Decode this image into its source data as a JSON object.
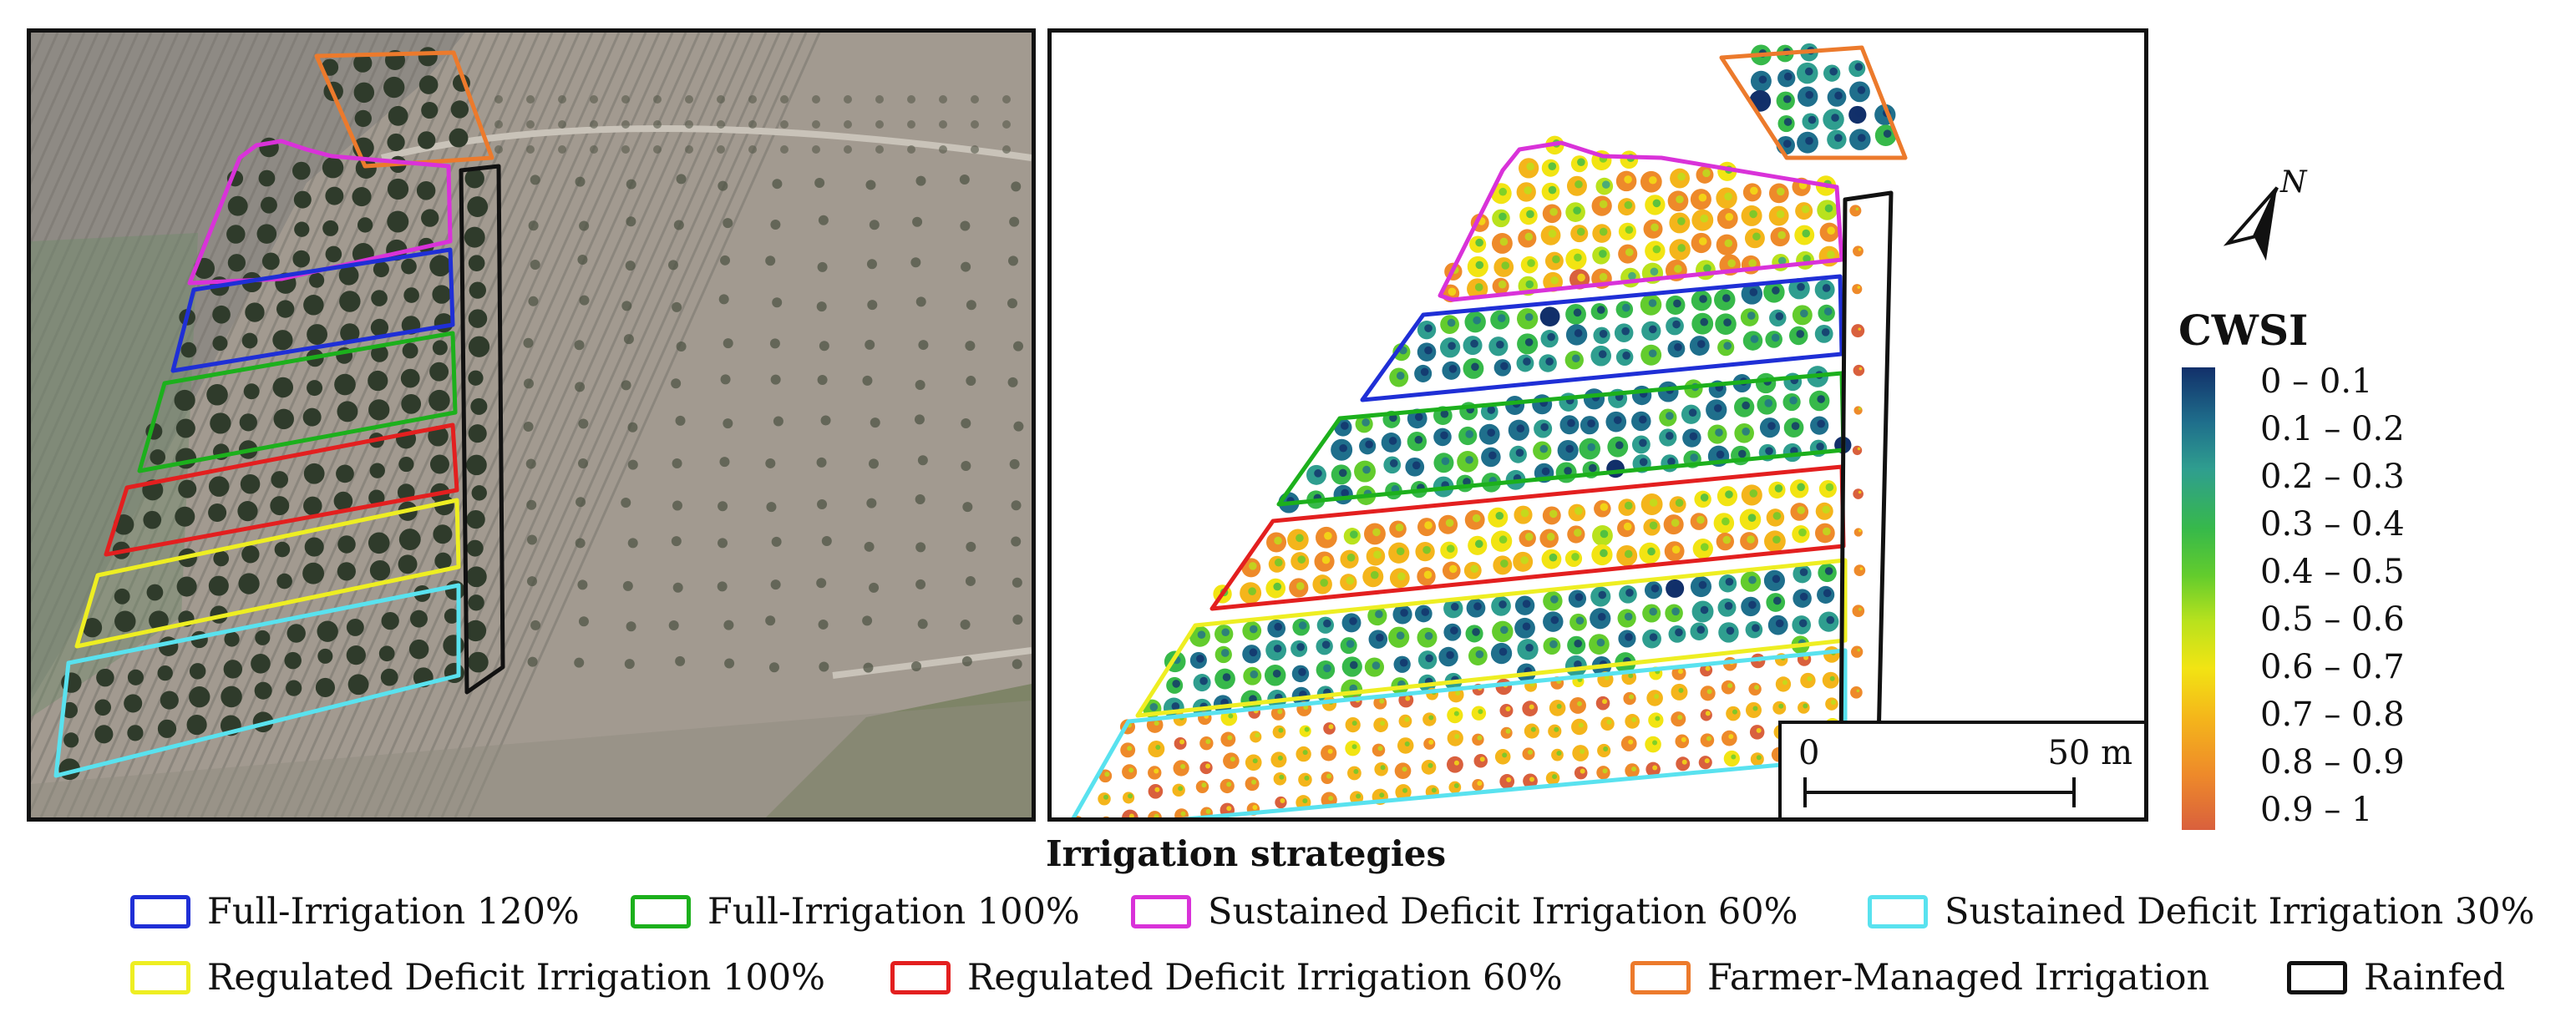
{
  "legend": {
    "title": "CWSI",
    "classes": [
      "0 – 0.1",
      "0.1 – 0.2",
      "0.2 – 0.3",
      "0.3 – 0.4",
      "0.4 – 0.5",
      "0.5 – 0.6",
      "0.6 – 0.7",
      "0.7 – 0.8",
      "0.8 – 0.9",
      "0.9 – 1"
    ],
    "gradient_colors": [
      "#12306a",
      "#1f6f8c",
      "#2f9e8f",
      "#37b94a",
      "#63cc2d",
      "#b9e21d",
      "#f2e413",
      "#f4b51b",
      "#ee8a2a",
      "#d9603d"
    ]
  },
  "north_arrow": {
    "label": "N"
  },
  "scale_bar": {
    "start": "0",
    "end": "50 m"
  },
  "strategies": {
    "title": "Irrigation strategies",
    "items": [
      {
        "label": "Full-Irrigation 120%",
        "color": "#1f2fd6"
      },
      {
        "label": "Full-Irrigation 100%",
        "color": "#1cb01c"
      },
      {
        "label": "Sustained Deficit Irrigation 60%",
        "color": "#d932d9"
      },
      {
        "label": "Sustained Deficit Irrigation 30%",
        "color": "#59e2ef"
      },
      {
        "label": "Regulated Deficit Irrigation 100%",
        "color": "#eeee22"
      },
      {
        "label": "Regulated Deficit Irrigation 60%",
        "color": "#e31f1f"
      },
      {
        "label": "Farmer-Managed Irrigation",
        "color": "#ec7a2c"
      },
      {
        "label": "Rainfed",
        "color": "#111111"
      }
    ]
  }
}
